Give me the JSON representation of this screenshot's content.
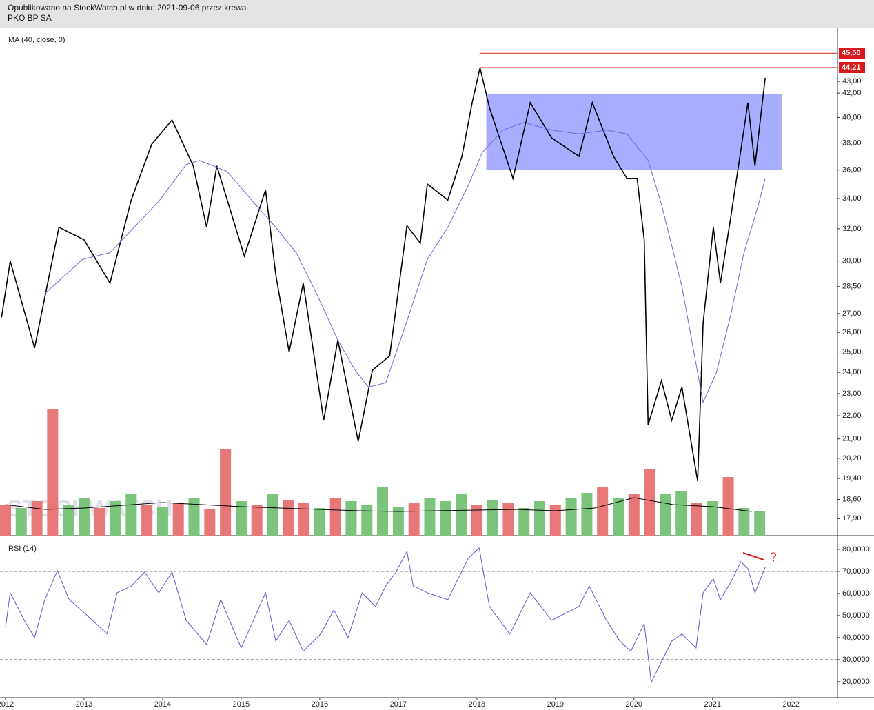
{
  "header": {
    "line1": "Opublikowano na StockWatch.pl w dniu: 2021-09-06 przez krewa",
    "line2": "PKO BP SA",
    "watermark": "STOCKWATCH"
  },
  "chart_data": [
    {
      "type": "line",
      "label": "MA (40, close, 0)",
      "log": true,
      "xlim": [
        2011.93,
        2022.59
      ],
      "ylim": [
        17.3,
        47.9
      ],
      "yticks": [
        {
          "value": 17.9,
          "label": "17,90"
        },
        {
          "value": 18.6,
          "label": "18,60"
        },
        {
          "value": 19.4,
          "label": "19,40"
        },
        {
          "value": 20.2,
          "label": "20,20"
        },
        {
          "value": 21,
          "label": "21,00"
        },
        {
          "value": 22,
          "label": "22,00"
        },
        {
          "value": 23,
          "label": "23,00"
        },
        {
          "value": 24,
          "label": "24,00"
        },
        {
          "value": 25,
          "label": "25,00"
        },
        {
          "value": 26,
          "label": "26,00"
        },
        {
          "value": 27,
          "label": "27,00"
        },
        {
          "value": 28.5,
          "label": "28,50"
        },
        {
          "value": 30,
          "label": "30,00"
        },
        {
          "value": 32,
          "label": "32,00"
        },
        {
          "value": 34,
          "label": "34,00"
        },
        {
          "value": 36,
          "label": "36,00"
        },
        {
          "value": 38,
          "label": "38,00"
        },
        {
          "value": 40,
          "label": "40,00"
        },
        {
          "value": 42,
          "label": "42,00"
        },
        {
          "value": 43,
          "label": "43,00"
        }
      ],
      "zone": {
        "x": [
          2018.12,
          2021.88
        ],
        "y": [
          36.0,
          41.9
        ],
        "color": "#a9adff"
      },
      "levels": [
        {
          "value": 45.5,
          "label": "45,50",
          "x0": 2018.04,
          "color": "#d9191c"
        },
        {
          "value": 44.21,
          "label": "44,21",
          "x0": 2018.04,
          "color": "#d9191c"
        }
      ],
      "series": [
        {
          "color": "#000000",
          "x": [
            2011.95,
            2012.06,
            2012.37,
            2012.68,
            2013.0,
            2013.33,
            2013.6,
            2013.86,
            2014.12,
            2014.39,
            2014.56,
            2014.69,
            2015.04,
            2015.31,
            2015.44,
            2015.61,
            2015.79,
            2016.05,
            2016.23,
            2016.49,
            2016.67,
            2016.89,
            2017.11,
            2017.28,
            2017.37,
            2017.63,
            2017.81,
            2017.94,
            2018.04,
            2018.16,
            2018.46,
            2018.68,
            2018.95,
            2019.3,
            2019.47,
            2019.74,
            2019.91,
            2020.04,
            2020.13,
            2020.18,
            2020.35,
            2020.48,
            2020.61,
            2020.81,
            2020.88,
            2021.01,
            2021.1,
            2021.23,
            2021.33,
            2021.45,
            2021.54,
            2021.67
          ],
          "values": [
            26.8,
            30.0,
            25.2,
            32.1,
            31.3,
            28.7,
            33.9,
            37.9,
            39.8,
            36.3,
            32.1,
            36.3,
            30.3,
            34.6,
            29.2,
            25.0,
            28.7,
            21.8,
            25.6,
            20.9,
            24.1,
            24.8,
            32.2,
            31.1,
            35.0,
            33.9,
            37.0,
            41.2,
            44.2,
            40.8,
            35.4,
            41.2,
            38.4,
            37.0,
            41.2,
            37.0,
            35.4,
            35.4,
            31.3,
            21.6,
            23.6,
            21.8,
            23.3,
            19.3,
            26.5,
            32.1,
            28.7,
            32.7,
            36.3,
            41.2,
            36.3,
            43.3
          ]
        },
        {
          "color": "#6a6ad8",
          "x": [
            2012.5,
            2012.98,
            2013.33,
            2013.6,
            2013.95,
            2014.3,
            2014.47,
            2014.82,
            2015.18,
            2015.44,
            2015.7,
            2015.96,
            2016.23,
            2016.45,
            2016.62,
            2016.84,
            2017.11,
            2017.37,
            2017.63,
            2017.89,
            2018.07,
            2018.33,
            2018.6,
            2018.95,
            2019.3,
            2019.65,
            2019.91,
            2020.18,
            2020.35,
            2020.61,
            2020.79,
            2020.88,
            2021.05,
            2021.23,
            2021.4,
            2021.58,
            2021.67
          ],
          "values": [
            28.1,
            30.1,
            30.5,
            31.9,
            33.8,
            36.4,
            36.7,
            35.9,
            33.6,
            32.1,
            30.5,
            28.1,
            25.6,
            24.1,
            23.3,
            23.5,
            26.6,
            30.1,
            32.1,
            34.9,
            37.3,
            39.0,
            39.6,
            39.0,
            38.7,
            39.0,
            38.7,
            36.7,
            33.6,
            28.5,
            24.4,
            22.6,
            24.0,
            26.9,
            30.5,
            33.5,
            35.4
          ]
        }
      ]
    },
    {
      "type": "bar",
      "xlim": [
        2011.93,
        2022.59
      ],
      "ylim": [
        0,
        737
      ],
      "x": [
        2012.0,
        2012.2,
        2012.4,
        2012.6,
        2012.8,
        2013.0,
        2013.2,
        2013.4,
        2013.6,
        2013.8,
        2014.0,
        2014.2,
        2014.4,
        2014.6,
        2014.8,
        2015.0,
        2015.2,
        2015.4,
        2015.6,
        2015.8,
        2016.0,
        2016.2,
        2016.4,
        2016.6,
        2016.8,
        2017.0,
        2017.2,
        2017.4,
        2017.6,
        2017.8,
        2018.0,
        2018.2,
        2018.4,
        2018.6,
        2018.8,
        2019.0,
        2019.2,
        2019.4,
        2019.6,
        2019.8,
        2020.0,
        2020.2,
        2020.4,
        2020.6,
        2020.8,
        2021.0,
        2021.2,
        2021.4,
        2021.6
      ],
      "values": [
        45,
        40,
        50,
        183,
        45,
        55,
        40,
        50,
        60,
        45,
        42,
        48,
        55,
        38,
        125,
        50,
        45,
        60,
        52,
        48,
        40,
        55,
        50,
        45,
        70,
        42,
        48,
        55,
        50,
        60,
        45,
        52,
        48,
        40,
        50,
        45,
        55,
        62,
        70,
        55,
        60,
        97,
        60,
        65,
        48,
        50,
        85,
        40,
        35
      ],
      "colors": [
        "#e87878",
        "#7cc47c",
        "#e87878",
        "#e87878",
        "#7cc47c",
        "#7cc47c",
        "#e87878",
        "#7cc47c",
        "#7cc47c",
        "#e87878",
        "#7cc47c",
        "#e87878",
        "#7cc47c",
        "#e87878",
        "#e87878",
        "#7cc47c",
        "#e87878",
        "#7cc47c",
        "#e87878",
        "#e87878",
        "#7cc47c",
        "#e87878",
        "#7cc47c",
        "#7cc47c",
        "#7cc47c",
        "#7cc47c",
        "#e87878",
        "#7cc47c",
        "#7cc47c",
        "#7cc47c",
        "#e87878",
        "#7cc47c",
        "#e87878",
        "#7cc47c",
        "#7cc47c",
        "#e87878",
        "#7cc47c",
        "#7cc47c",
        "#e87878",
        "#7cc47c",
        "#e87878",
        "#e87878",
        "#7cc47c",
        "#7cc47c",
        "#e87878",
        "#7cc47c",
        "#e87878",
        "#7cc47c",
        "#7cc47c"
      ],
      "series": [
        {
          "color": "#000000",
          "x": [
            2012.0,
            2012.5,
            2013.0,
            2013.5,
            2014.0,
            2014.5,
            2015.0,
            2015.5,
            2016.0,
            2016.5,
            2017.0,
            2017.5,
            2018.0,
            2018.5,
            2019.0,
            2019.5,
            2020.0,
            2020.5,
            2021.0,
            2021.5
          ],
          "values": [
            45,
            38,
            40,
            44,
            48,
            45,
            42,
            40,
            38,
            36,
            35,
            36,
            37,
            38,
            36,
            40,
            55,
            45,
            42,
            35
          ]
        }
      ]
    },
    {
      "type": "line",
      "label": "RSI (14)",
      "annotation": "?",
      "xlim": [
        2011.93,
        2022.59
      ],
      "ylim": [
        13.4,
        85.3
      ],
      "xticks": [
        2012,
        2013,
        2014,
        2015,
        2016,
        2017,
        2018,
        2019,
        2020,
        2021,
        2022
      ],
      "yticks": [
        {
          "value": 20,
          "label": "20,0000"
        },
        {
          "value": 30,
          "label": "30,0000"
        },
        {
          "value": 40,
          "label": "40,0000"
        },
        {
          "value": 50,
          "label": "50,0000"
        },
        {
          "value": 60,
          "label": "60,0000"
        },
        {
          "value": 70,
          "label": "70,0000"
        },
        {
          "value": 80,
          "label": "80,0000"
        }
      ],
      "ref_lines": [
        30,
        70
      ],
      "series": [
        {
          "color": "#5a5ad0",
          "x": [
            2012.0,
            2012.06,
            2012.24,
            2012.37,
            2012.5,
            2012.66,
            2012.81,
            2013.11,
            2013.29,
            2013.42,
            2013.6,
            2013.77,
            2013.95,
            2014.12,
            2014.3,
            2014.56,
            2014.74,
            2015.0,
            2015.31,
            2015.44,
            2015.61,
            2015.79,
            2016.01,
            2016.18,
            2016.36,
            2016.54,
            2016.71,
            2016.84,
            2016.97,
            2017.11,
            2017.19,
            2017.37,
            2017.63,
            2017.89,
            2018.03,
            2018.16,
            2018.42,
            2018.68,
            2018.95,
            2019.3,
            2019.43,
            2019.65,
            2019.82,
            2019.96,
            2020.13,
            2020.22,
            2020.35,
            2020.48,
            2020.61,
            2020.79,
            2020.88,
            2021.01,
            2021.1,
            2021.23,
            2021.36,
            2021.45,
            2021.54,
            2021.67
          ],
          "values": [
            44.7,
            60.3,
            47.8,
            40.0,
            57.2,
            70.3,
            57.2,
            47.8,
            41.6,
            60.3,
            63.4,
            69.7,
            60.3,
            69.7,
            47.8,
            36.9,
            57.2,
            35.3,
            60.3,
            38.4,
            47.8,
            33.8,
            41.6,
            52.5,
            40.0,
            60.3,
            54.1,
            63.4,
            69.7,
            79.1,
            63.4,
            60.3,
            57.2,
            75.9,
            80.6,
            54.1,
            41.6,
            60.3,
            47.8,
            54.1,
            63.4,
            47.8,
            38.4,
            33.8,
            46.3,
            19.7,
            29.1,
            38.4,
            41.6,
            35.3,
            60.3,
            66.6,
            57.2,
            65.0,
            74.4,
            71.3,
            60.3,
            71.9
          ]
        }
      ]
    }
  ]
}
